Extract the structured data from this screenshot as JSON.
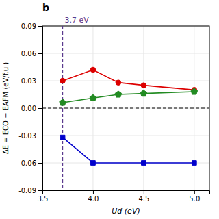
{
  "chart_data": {
    "type": "line",
    "title": "b",
    "x_label": "Ud (eV)",
    "y_label": "ΔE = ECO − EAFM (eV/f.u.)",
    "xlim": [
      3.5,
      5.15
    ],
    "ylim": [
      -0.09,
      0.09
    ],
    "xticks": [
      3.5,
      {
        "value": 4.0,
        "label": "4.0"
      },
      4.5,
      {
        "value": 5.0,
        "label": "5.0"
      }
    ],
    "yticks": [
      -0.09,
      -0.06,
      -0.03,
      {
        "value": 0.0,
        "label": "0.00"
      },
      0.03,
      0.06,
      0.09
    ],
    "grid": true,
    "series": [
      {
        "color": "#DD0000",
        "marker": "circle",
        "x": [
          3.7,
          4.0,
          4.25,
          4.5,
          5.0
        ],
        "values": [
          0.03,
          0.042,
          0.028,
          0.025,
          0.02
        ]
      },
      {
        "color": "#228B22",
        "marker": "pentagon",
        "x": [
          3.7,
          4.0,
          4.25,
          4.5,
          5.0
        ],
        "values": [
          0.006,
          0.011,
          0.015,
          0.016,
          0.018
        ]
      },
      {
        "color": "#0000CC",
        "marker": "square",
        "x": [
          3.7,
          4.0,
          4.5,
          5.0
        ],
        "values": [
          -0.032,
          -0.06,
          -0.06,
          -0.06
        ]
      }
    ],
    "hline": {
      "y": 0.0,
      "color": "#000000",
      "line_style": "dashed"
    },
    "vline": {
      "x": 3.7,
      "color": "#5B3A8E",
      "line_style": "dashed",
      "label": "3.7 eV"
    }
  }
}
